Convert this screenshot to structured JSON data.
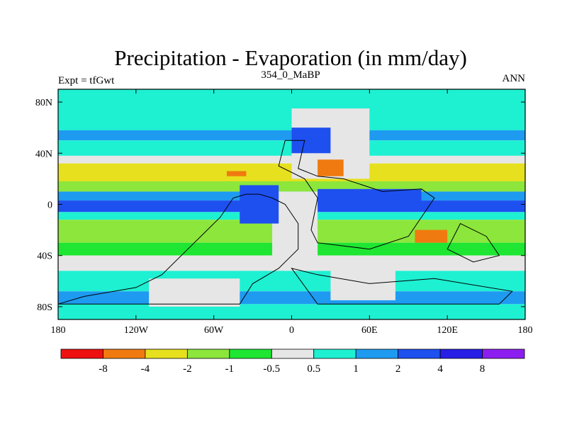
{
  "chart_data": {
    "type": "heatmap",
    "title": "Precipitation - Evaporation (in mm/day)",
    "subtitle_left": "Expt = tfGwt",
    "subtitle_center": "354_0_MaBP",
    "subtitle_right": "ANN",
    "x_ticks": [
      {
        "value": -180,
        "label": "180"
      },
      {
        "value": -120,
        "label": "120W"
      },
      {
        "value": -60,
        "label": "60W"
      },
      {
        "value": 0,
        "label": "0"
      },
      {
        "value": 60,
        "label": "60E"
      },
      {
        "value": 120,
        "label": "120E"
      },
      {
        "value": 180,
        "label": "180"
      }
    ],
    "y_ticks": [
      {
        "value": 80,
        "label": "80N"
      },
      {
        "value": 40,
        "label": "40N"
      },
      {
        "value": 0,
        "label": "0"
      },
      {
        "value": -40,
        "label": "40S"
      },
      {
        "value": -80,
        "label": "80S"
      }
    ],
    "xlim": [
      -180,
      180
    ],
    "ylim": [
      -90,
      90
    ],
    "colorbar": {
      "colors": [
        "#ee1111",
        "#f07a10",
        "#e6e01e",
        "#8ce63c",
        "#1ee632",
        "#e6e6e6",
        "#1ef0d2",
        "#1e9bf0",
        "#1e50f0",
        "#281ee6",
        "#8c1ef0"
      ],
      "labels": [
        "-8",
        "-4",
        "-2",
        "-1",
        "-0.5",
        "0.5",
        "1",
        "2",
        "4",
        "8"
      ]
    },
    "zonal_bands": [
      {
        "lat": [
          58,
          90
        ],
        "class": 6
      },
      {
        "lat": [
          50,
          58
        ],
        "class": 7
      },
      {
        "lat": [
          38,
          50
        ],
        "class": 6
      },
      {
        "lat": [
          32,
          38
        ],
        "class": 5
      },
      {
        "lat": [
          18,
          32
        ],
        "class": 2
      },
      {
        "lat": [
          10,
          18
        ],
        "class": 3
      },
      {
        "lat": [
          3,
          10
        ],
        "class": 7
      },
      {
        "lat": [
          -6,
          3
        ],
        "class": 8
      },
      {
        "lat": [
          -12,
          -6
        ],
        "class": 6
      },
      {
        "lat": [
          -30,
          -12
        ],
        "class": 3
      },
      {
        "lat": [
          -40,
          -30
        ],
        "class": 4
      },
      {
        "lat": [
          -52,
          -40
        ],
        "class": 5
      },
      {
        "lat": [
          -68,
          -52
        ],
        "class": 6
      },
      {
        "lat": [
          -78,
          -68
        ],
        "class": 7
      },
      {
        "lat": [
          -90,
          -78
        ],
        "class": 6
      }
    ],
    "regions": [
      {
        "lon": [
          -180,
          180
        ],
        "lat": [
          58,
          90
        ],
        "class": 6
      },
      {
        "lon": [
          0,
          60
        ],
        "lat": [
          20,
          75
        ],
        "class": 5
      },
      {
        "lon": [
          -15,
          20
        ],
        "lat": [
          -45,
          10
        ],
        "class": 5
      },
      {
        "lon": [
          30,
          80
        ],
        "lat": [
          -75,
          -50
        ],
        "class": 5
      },
      {
        "lon": [
          -110,
          -40
        ],
        "lat": [
          -80,
          -58
        ],
        "class": 5
      },
      {
        "lon": [
          0,
          30
        ],
        "lat": [
          40,
          60
        ],
        "class": 8
      },
      {
        "lon": [
          20,
          100
        ],
        "lat": [
          -2,
          12
        ],
        "class": 8
      },
      {
        "lon": [
          -40,
          -10
        ],
        "lat": [
          -15,
          15
        ],
        "class": 8
      },
      {
        "lon": [
          20,
          40
        ],
        "lat": [
          22,
          35
        ],
        "class": 1
      },
      {
        "lon": [
          95,
          120
        ],
        "lat": [
          -30,
          -20
        ],
        "class": 1
      },
      {
        "lon": [
          -50,
          -35
        ],
        "lat": [
          22,
          26
        ],
        "class": 1
      }
    ]
  }
}
